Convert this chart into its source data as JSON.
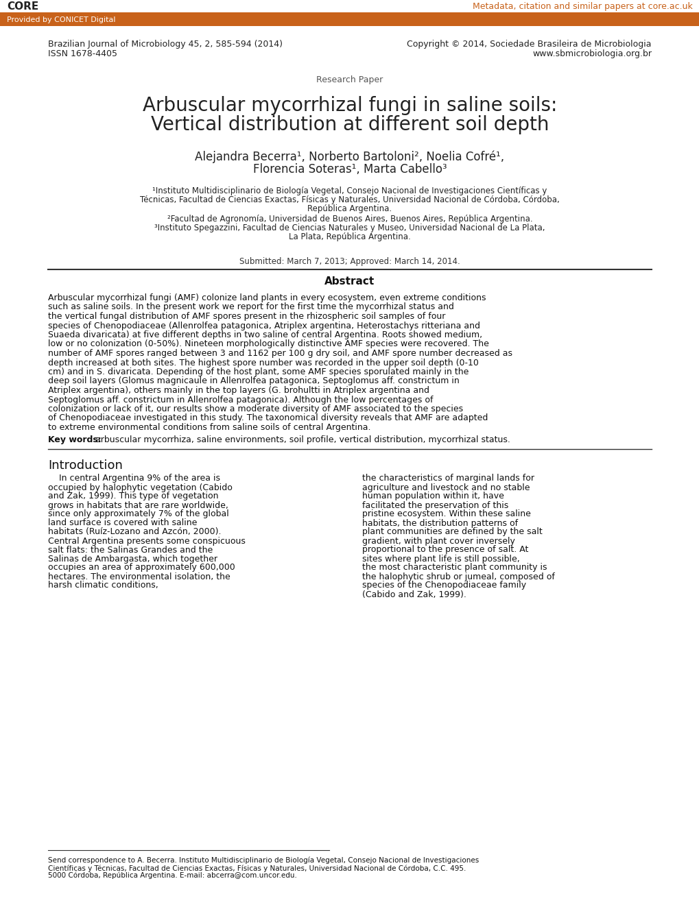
{
  "bg_color": "#ffffff",
  "header_bar_color": "#c8621a",
  "header_bar_text": "Provided by CONICET Digital",
  "core_text": "CORE",
  "core_link": "Metadata, citation and similar papers at core.ac.uk",
  "journal_line1": "Brazilian Journal of Microbiology 45, 2, 585-594 (2014)",
  "journal_line2": "ISSN 1678-4405",
  "copyright_line1": "Copyright © 2014, Sociedade Brasileira de Microbiologia",
  "copyright_line2": "www.sbmicrobiologia.org.br",
  "section_label": "Research Paper",
  "title_line1": "Arbuscular mycorrhizal fungi in saline soils:",
  "title_line2": "Vertical distribution at different soil depth",
  "authors_line1": "Alejandra Becerra¹, Norberto Bartoloni², Noelia Cofré¹,",
  "authors_line2": "Florencia Soteras¹, Marta Cabello³",
  "affil1": "¹Instituto Multidisciplinario de Biología Vegetal, Consejo Nacional de Investigaciones Científicas y",
  "affil1b": "Técnicas, Facultad de Ciencias Exactas, Físicas y Naturales, Universidad Nacional de Córdoba, Córdoba,",
  "affil1c": "República Argentina.",
  "affil2": "²Facultad de Agronomía, Universidad de Buenos Aires, Buenos Aires, República Argentina.",
  "affil3": "³Instituto Spegazzini, Facultad de Ciencias Naturales y Museo, Universidad Nacional de La Plata,",
  "affil3b": "La Plata, República Argentina.",
  "submitted": "Submitted: March 7, 2013; Approved: March 14, 2014.",
  "abstract_title": "Abstract",
  "abstract_text": "Arbuscular mycorrhizal fungi (AMF) colonize land plants in every ecosystem, even extreme conditions such as saline soils. In the present work we report for the first time the mycorrhizal status and the vertical fungal distribution of AMF spores present in the rhizospheric soil samples of four species of Chenopodiaceae (Allenrolfea patagonica, Atriplex argentina, Heterostachys ritteriana and Suaeda divaricata) at five different depths in two saline of central Argentina. Roots showed medium, low or no colonization (0-50%). Nineteen morphologically distinctive AMF species were recovered. The number of AMF spores ranged between 3 and 1162 per 100 g dry soil, and AMF spore number decreased as depth increased at both sites. The highest spore number was recorded in the upper soil depth (0-10 cm) and in S. divaricata. Depending of the host plant, some AMF species sporulated mainly in the deep soil layers (Glomus magnicaule in Allenrolfea patagonica, Septoglomus aff. constrictum in Atriplex argentina), others mainly in the top layers (G. brohultti in Atriplex argentina and Septoglomus aff. constrictum in Allenrolfea patagonica). Although the low percentages of colonization or lack of it, our results show a moderate diversity of AMF associated to the species of Chenopodiaceae investigated in this study. The taxonomical diversity reveals that AMF are adapted to extreme environmental conditions from saline soils of central Argentina.",
  "keywords_label": "Key words:",
  "keywords_text": " arbuscular mycorrhiza, saline environments, soil profile, vertical distribution, mycorrhizal status.",
  "intro_title": "Introduction",
  "intro_col1": "In central Argentina 9% of the area is occupied by halophytic vegetation (Cabido and Zak, 1999). This type of vegetation grows in habitats that are rare worldwide, since only approximately 7% of the global land surface is covered with saline habitats (Ruíz-Lozano and Azcón, 2000). Central Argentina presents some conspicuous salt flats: the Salinas Grandes and the Salinas de Ambargasta, which together occupies an area of approximately 600,000 hectares. The environmental isolation, the harsh climatic conditions,",
  "intro_col2": "the characteristics of marginal lands for agriculture and livestock and no stable human population within it, have facilitated the preservation of this pristine ecosystem. Within these saline habitats, the distribution patterns of plant communities are defined by the salt gradient, with plant cover inversely proportional to the presence of salt. At sites where plant life is still possible, the most characteristic plant community is the halophytic shrub or jumeal, composed of species of the Chenopodiaceae family (Cabido and Zak, 1999).",
  "footnote": "Send correspondence to A. Becerra. Instituto Multidisciplinario de Biología Vegetal, Consejo Nacional de Investigaciones Científicas y Técnicas, Facultad de Ciencias Exactas, Físicas y Naturales, Universidad Nacional de Córdoba, C.C. 495. 5000 Córdoba, República Argentina. E-mail: abcerra@com.uncor.edu."
}
